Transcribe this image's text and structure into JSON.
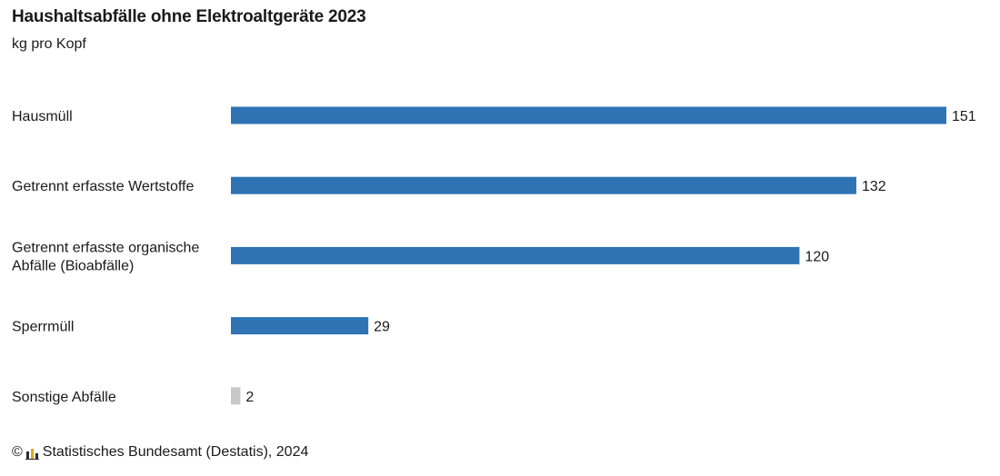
{
  "chart": {
    "title": "Haushaltsabfälle ohne Elektroaltgeräte 2023",
    "subtitle": "kg pro Kopf"
  },
  "colors": {
    "bar_primary": "#2e74b5",
    "bar_secondary": "#c8c8c8",
    "text": "#1a1a1a"
  },
  "chart_data": {
    "type": "bar",
    "orientation": "horizontal",
    "title": "Haushaltsabfälle ohne Elektroaltgeräte 2023",
    "subtitle": "kg pro Kopf",
    "categories": [
      [
        "Hausmüll"
      ],
      [
        "Getrennt erfasste Wertstoffe"
      ],
      [
        "Getrennt erfasste organische",
        "Abfälle (Bioabfälle)"
      ],
      [
        "Sperrmüll"
      ],
      [
        "Sonstige Abfälle"
      ]
    ],
    "values": [
      151,
      132,
      120,
      29,
      2
    ],
    "bar_colors": [
      "#2e74b5",
      "#2e74b5",
      "#2e74b5",
      "#2e74b5",
      "#c8c8c8"
    ],
    "xlim": [
      0,
      151
    ],
    "grid": false,
    "legend": "none"
  },
  "footer": {
    "copyright_symbol": "©",
    "source": "Statistisches Bundesamt (Destatis), 2024",
    "logo_icon": "destatis-logo-icon"
  }
}
